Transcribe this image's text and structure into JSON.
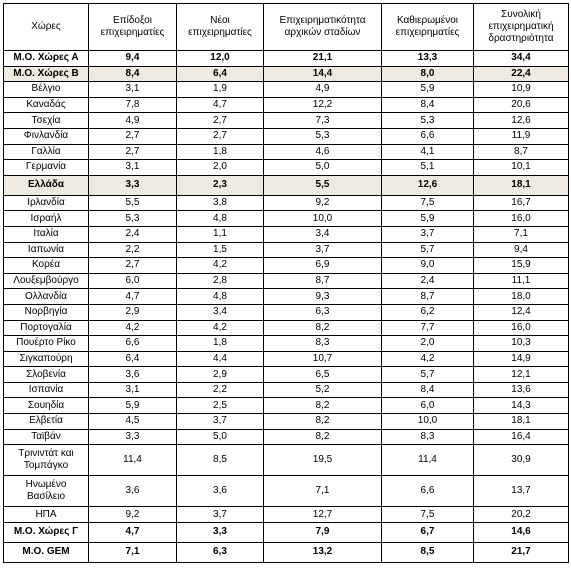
{
  "headers": [
    "Χώρες",
    "Επίδοξοι επιχειρηματίες",
    "Νέοι επιχειρηματίες",
    "Επιχειρηματικότητα αρχικών σταδίων",
    "Καθιερωμένοι επιχειρηματίες",
    "Συνολική επιχειρηματική δραστηριότητα"
  ],
  "rows": [
    {
      "cells": [
        "Μ.Ο. Χώρες Α",
        "9,4",
        "12,0",
        "21,1",
        "13,3",
        "34,4"
      ],
      "style": "bold"
    },
    {
      "cells": [
        "Μ.Ο. Χώρες Β",
        "8,4",
        "6,4",
        "14,4",
        "8,0",
        "22,4"
      ],
      "style": "bold shaded"
    },
    {
      "cells": [
        "Βέλγιο",
        "3,1",
        "1,9",
        "4,9",
        "5,9",
        "10,9"
      ]
    },
    {
      "cells": [
        "Καναδάς",
        "7,8",
        "4,7",
        "12,2",
        "8,4",
        "20,6"
      ]
    },
    {
      "cells": [
        "Τσεχία",
        "4,9",
        "2,7",
        "7,3",
        "5,3",
        "12,6"
      ]
    },
    {
      "cells": [
        "Φινλανδία",
        "2,7",
        "2,7",
        "5,3",
        "6,6",
        "11,9"
      ]
    },
    {
      "cells": [
        "Γαλλία",
        "2,7",
        "1,8",
        "4,6",
        "4,1",
        "8,7"
      ]
    },
    {
      "cells": [
        "Γερμανία",
        "3,1",
        "2,0",
        "5,0",
        "5,1",
        "10,1"
      ]
    },
    {
      "cells": [
        "Ελλάδα",
        "3,3",
        "2,3",
        "5,5",
        "12,6",
        "18,1"
      ],
      "style": "bold shaded gap"
    },
    {
      "cells": [
        "Ιρλανδία",
        "5,5",
        "3,8",
        "9,2",
        "7,5",
        "16,7"
      ]
    },
    {
      "cells": [
        "Ισραήλ",
        "5,3",
        "4,8",
        "10,0",
        "5,9",
        "16,0"
      ]
    },
    {
      "cells": [
        "Ιταλία",
        "2,4",
        "1,1",
        "3,4",
        "3,7",
        "7,1"
      ]
    },
    {
      "cells": [
        "Ιαπωνία",
        "2,2",
        "1,5",
        "3,7",
        "5,7",
        "9,4"
      ]
    },
    {
      "cells": [
        "Κορέα",
        "2,7",
        "4,2",
        "6,9",
        "9,0",
        "15,9"
      ]
    },
    {
      "cells": [
        "Λουξεμβούργο",
        "6,0",
        "2,8",
        "8,7",
        "2,4",
        "11,1"
      ]
    },
    {
      "cells": [
        "Ολλανδία",
        "4,7",
        "4,8",
        "9,3",
        "8,7",
        "18,0"
      ]
    },
    {
      "cells": [
        "Νορβηγία",
        "2,9",
        "3,4",
        "6,3",
        "6,2",
        "12,4"
      ]
    },
    {
      "cells": [
        "Πορτογαλία",
        "4,2",
        "4,2",
        "8,2",
        "7,7",
        "16,0"
      ]
    },
    {
      "cells": [
        "Πουέρτο Ρίκο",
        "6,6",
        "1,8",
        "8,3",
        "2,0",
        "10,3"
      ]
    },
    {
      "cells": [
        "Σιγκαπούρη",
        "6,4",
        "4,4",
        "10,7",
        "4,2",
        "14,9"
      ]
    },
    {
      "cells": [
        "Σλοβενία",
        "3,6",
        "2,9",
        "6,5",
        "5,7",
        "12,1"
      ]
    },
    {
      "cells": [
        "Ισπανία",
        "3,1",
        "2,2",
        "5,2",
        "8,4",
        "13,6"
      ]
    },
    {
      "cells": [
        "Σουηδία",
        "5,9",
        "2,5",
        "8,2",
        "6,0",
        "14,3"
      ]
    },
    {
      "cells": [
        "Ελβετία",
        "4,5",
        "3,7",
        "8,2",
        "10,0",
        "18,1"
      ]
    },
    {
      "cells": [
        "Ταϊβάν",
        "3,3",
        "5,0",
        "8,2",
        "8,3",
        "16,4"
      ]
    },
    {
      "cells": [
        "Τρινιντάτ και Τομπάγκο",
        "11,4",
        "8,5",
        "19,5",
        "11,4",
        "30,9"
      ],
      "style": "tall"
    },
    {
      "cells": [
        "Ηνωμένο Βασίλειο",
        "3,6",
        "3,6",
        "7,1",
        "6,6",
        "13,7"
      ],
      "style": "tall"
    },
    {
      "cells": [
        "ΗΠΑ",
        "9,2",
        "3,7",
        "12,7",
        "7,5",
        "20,2"
      ]
    },
    {
      "cells": [
        "Μ.Ο. Χώρες Γ",
        "4,7",
        "3,3",
        "7,9",
        "6,7",
        "14,6"
      ],
      "style": "bold gap"
    },
    {
      "cells": [
        "Μ.Ο. GEM",
        "7,1",
        "6,3",
        "13,2",
        "8,5",
        "21,7"
      ],
      "style": "bold gap"
    }
  ]
}
